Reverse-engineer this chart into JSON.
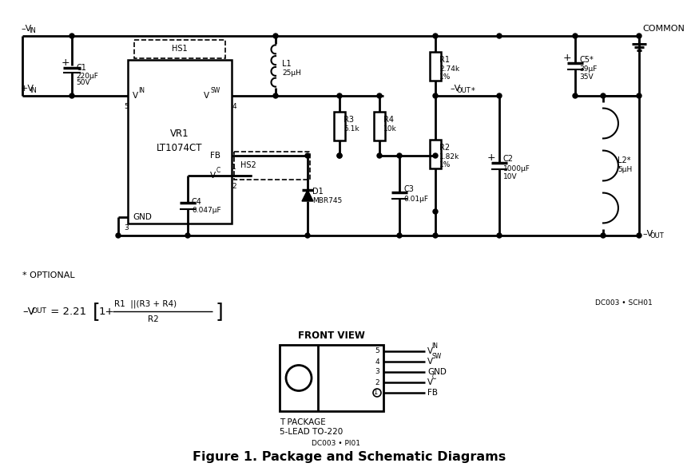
{
  "bg_color": "#ffffff",
  "fig_title": "Figure 1. Package and Schematic Diagrams",
  "doc_id_schematic": "DC003 • SCH01",
  "doc_id_package": "DC003 • PI01"
}
